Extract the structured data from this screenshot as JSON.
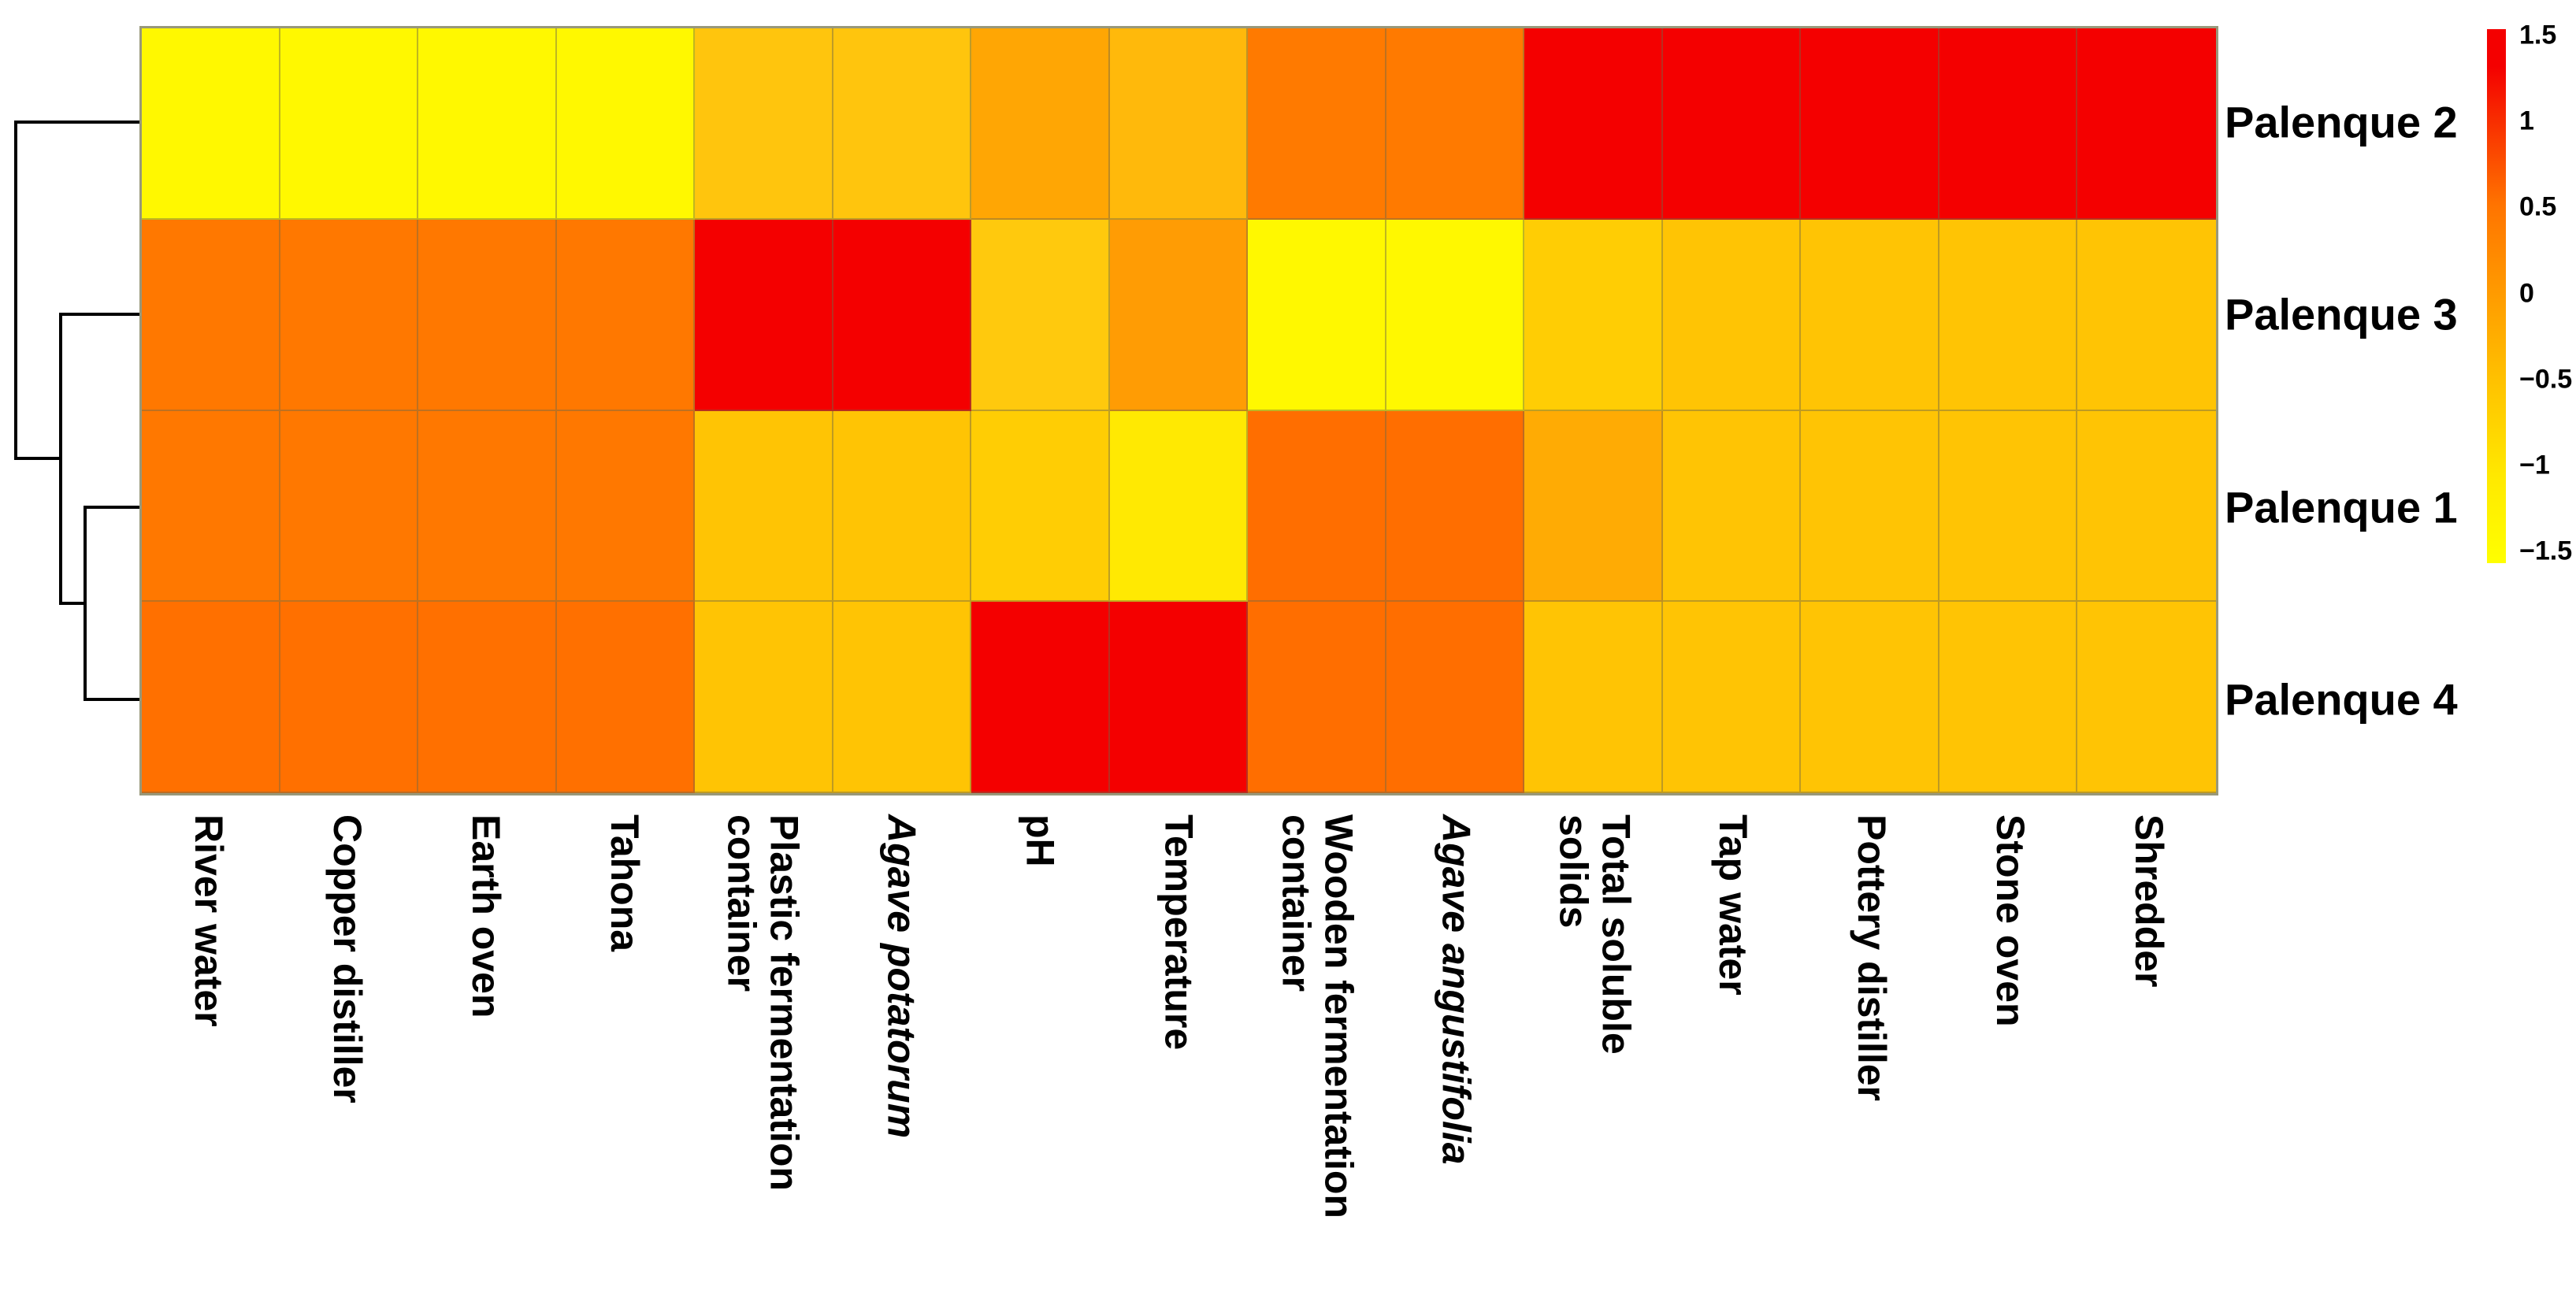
{
  "chart_data": {
    "type": "heatmap",
    "title": "",
    "rows": [
      "Palenque 2",
      "Palenque 3",
      "Palenque 1",
      "Palenque 4"
    ],
    "columns": [
      {
        "label": "River water",
        "lines": [
          "River water"
        ],
        "italic": false
      },
      {
        "label": "Copper distiller",
        "lines": [
          "Copper distiller"
        ],
        "italic": false
      },
      {
        "label": "Earth oven",
        "lines": [
          "Earth oven"
        ],
        "italic": false
      },
      {
        "label": "Tahona",
        "lines": [
          "Tahona"
        ],
        "italic": false
      },
      {
        "label": "Plastic fermentation container",
        "lines": [
          "Plastic fermentation",
          "container"
        ],
        "italic": false
      },
      {
        "label": "Agave potatorum",
        "lines": [
          "Agave potatorum"
        ],
        "italic": true
      },
      {
        "label": "pH",
        "lines": [
          "pH"
        ],
        "italic": false
      },
      {
        "label": "Temperature",
        "lines": [
          "Temperature"
        ],
        "italic": false
      },
      {
        "label": "Wooden fermentation container",
        "lines": [
          "Wooden fermentation",
          "container"
        ],
        "italic": false
      },
      {
        "label": "Agave angustifolia",
        "lines": [
          "Agave angustifolia"
        ],
        "italic": true
      },
      {
        "label": "Total soluble solids",
        "lines": [
          "Total soluble",
          "solids"
        ],
        "italic": false
      },
      {
        "label": "Tap water",
        "lines": [
          "Tap water"
        ],
        "italic": false
      },
      {
        "label": "Pottery distiller",
        "lines": [
          "Pottery distiller"
        ],
        "italic": false
      },
      {
        "label": "Stone oven",
        "lines": [
          "Stone oven"
        ],
        "italic": false
      },
      {
        "label": "Shredder",
        "lines": [
          "Shredder"
        ],
        "italic": false
      }
    ],
    "cell_colors": [
      [
        "#FFF800",
        "#FFF800",
        "#FFF800",
        "#FFF800",
        "#FFC50D",
        "#FFC50D",
        "#FFA604",
        "#FFB90B",
        "#FF7A00",
        "#FF7A00",
        "#F40000",
        "#F40000",
        "#F40000",
        "#F40000",
        "#F40000"
      ],
      [
        "#FF7800",
        "#FF7800",
        "#FF7800",
        "#FF7800",
        "#F40000",
        "#F40000",
        "#FFC90D",
        "#FF9C04",
        "#FFF800",
        "#FFF800",
        "#FFCD04",
        "#FFC404",
        "#FFC404",
        "#FFC404",
        "#FFC404"
      ],
      [
        "#FF7800",
        "#FF7800",
        "#FF7800",
        "#FF7800",
        "#FFC404",
        "#FFC404",
        "#FFCD04",
        "#FFE902",
        "#FF6E00",
        "#FF6E00",
        "#FFAB04",
        "#FFC404",
        "#FFC404",
        "#FFC404",
        "#FFC404"
      ],
      [
        "#FF7000",
        "#FF7000",
        "#FF7000",
        "#FF7000",
        "#FFC404",
        "#FFC404",
        "#F40000",
        "#F40000",
        "#FF6E00",
        "#FF6E00",
        "#FFC404",
        "#FFC404",
        "#FFC404",
        "#FFC404",
        "#FFC404"
      ]
    ],
    "z_estimates": [
      [
        -1.4,
        -1.4,
        -1.4,
        -1.4,
        -0.5,
        -0.5,
        -0.15,
        -0.35,
        0.55,
        0.55,
        1.4,
        1.4,
        1.4,
        1.4,
        1.4
      ],
      [
        0.55,
        0.55,
        0.55,
        0.55,
        1.4,
        1.4,
        -0.55,
        0.05,
        -1.4,
        -1.4,
        -0.65,
        -0.5,
        -0.5,
        -0.5,
        -0.5
      ],
      [
        0.55,
        0.55,
        0.55,
        0.55,
        -0.5,
        -0.5,
        -0.6,
        -1.05,
        0.6,
        0.6,
        -0.2,
        -0.5,
        -0.5,
        -0.5,
        -0.5
      ],
      [
        0.6,
        0.6,
        0.6,
        0.6,
        -0.5,
        -0.5,
        1.4,
        1.4,
        0.6,
        0.6,
        -0.5,
        -0.5,
        -0.5,
        -0.5,
        -0.5
      ]
    ],
    "colorscale": {
      "min": -1.5,
      "max": 1.5,
      "ticks": [
        "1.5",
        "1",
        "0.5",
        "0",
        "-0.5",
        "-1",
        "-1.5"
      ],
      "gradient_top_color": "#F40000",
      "gradient_bottom_color": "#FFFF00",
      "position": "right"
    },
    "dendrogram": {
      "row_order": [
        "Palenque 2",
        "Palenque 3",
        "Palenque 1",
        "Palenque 4"
      ],
      "topology": "(Palenque 2,(Palenque 3,(Palenque 1,Palenque 4)))"
    },
    "grid": true,
    "legend_position": "right"
  }
}
